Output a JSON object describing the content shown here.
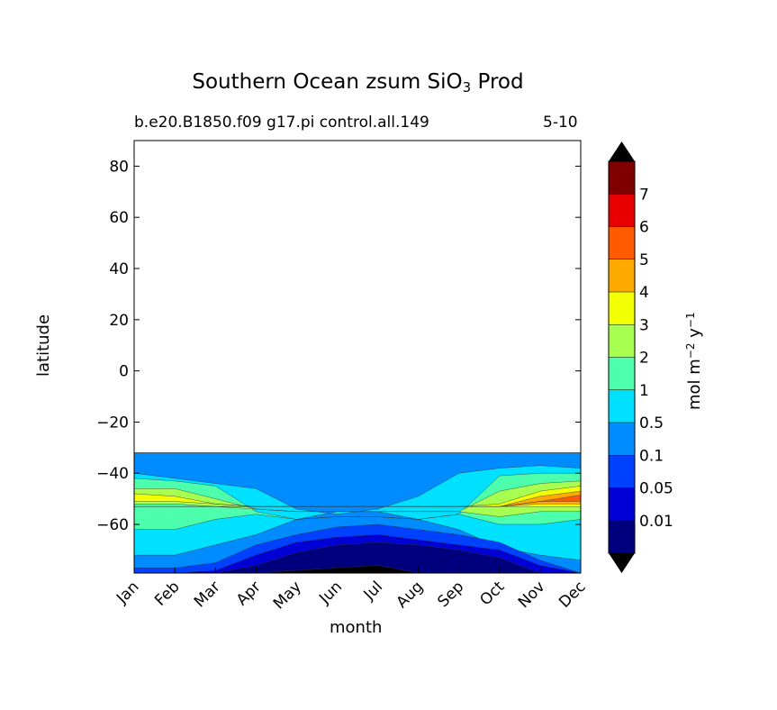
{
  "chart_data": {
    "type": "contourf",
    "title": "Southern Ocean zsum SiO",
    "title_subscript": "3",
    "title_suffix": "Prod",
    "subtitle_left": "b.e20.B1850.f09 g17.pi control.all.149",
    "subtitle_right": "5-10",
    "xlabel": "month",
    "ylabel": "latitude",
    "x_categories": [
      "Jan",
      "Feb",
      "Mar",
      "Apr",
      "May",
      "Jun",
      "Jul",
      "Aug",
      "Sep",
      "Oct",
      "Nov",
      "Dec"
    ],
    "y_ticks": [
      80,
      60,
      40,
      20,
      0,
      -20,
      -40,
      -60
    ],
    "y_tick_labels": [
      "80",
      "60",
      "40",
      "20",
      "0",
      "−20",
      "−40",
      "−60"
    ],
    "ylim": [
      -79,
      90
    ],
    "data_region_north_edge": -32,
    "colorbar": {
      "label_main": "mol m",
      "label_exp1": "−2",
      "label_mid": " y",
      "label_exp2": "−1",
      "levels": [
        "0.01",
        "0.05",
        "0.1",
        "0.5",
        "1",
        "2",
        "3",
        "4",
        "5",
        "6",
        "7"
      ],
      "colors": [
        "#00007f",
        "#0000d6",
        "#0040ff",
        "#008cff",
        "#00e0ff",
        "#4dffad",
        "#a7ff50",
        "#f2ff05",
        "#ffaa00",
        "#ff5a00",
        "#e80000",
        "#7f0000"
      ],
      "extend": "both",
      "extend_low_color": "#000000",
      "extend_high_color": "#000000"
    },
    "field_summary": {
      "north_band_-32_to_-40": "0.1-0.5 (light blue)",
      "jan_feb_-45_to-55": "1-3 (green/yellow-green)",
      "jun_jul_-65_to-79": "below 0.01 (dark navy, some black)",
      "nov_dec_-45_to-55": "up to 5-6 (orange)"
    }
  }
}
